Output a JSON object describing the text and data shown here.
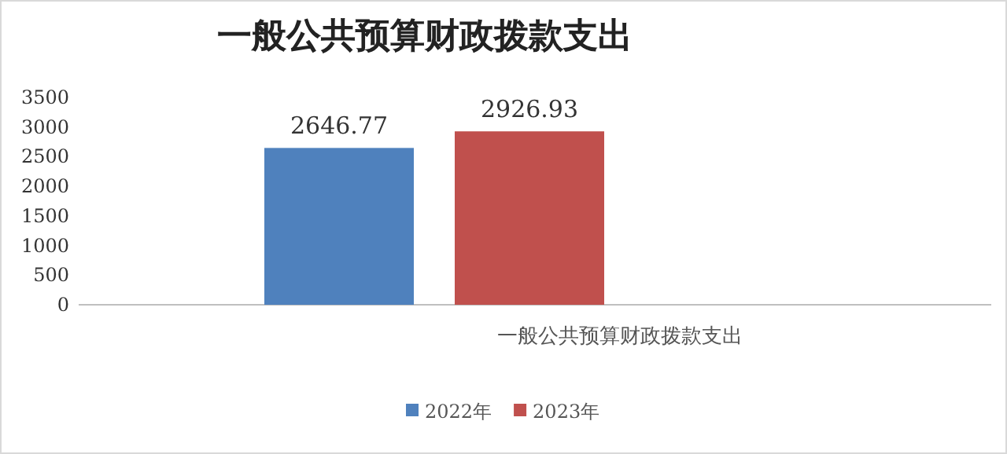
{
  "chart_data": {
    "type": "bar",
    "title": "一般公共预算财政拨款支出",
    "categories": [
      "一般公共预算财政拨款支出"
    ],
    "series": [
      {
        "name": "2022年",
        "color": "#4f81bd",
        "values": [
          2646.77
        ]
      },
      {
        "name": "2023年",
        "color": "#c0504d",
        "values": [
          2926.93
        ]
      }
    ],
    "ylim": [
      0,
      3500
    ],
    "yticks": [
      0,
      500,
      1000,
      1500,
      2000,
      2500,
      3000,
      3500
    ],
    "data_labels": true,
    "legend": "bottom"
  }
}
